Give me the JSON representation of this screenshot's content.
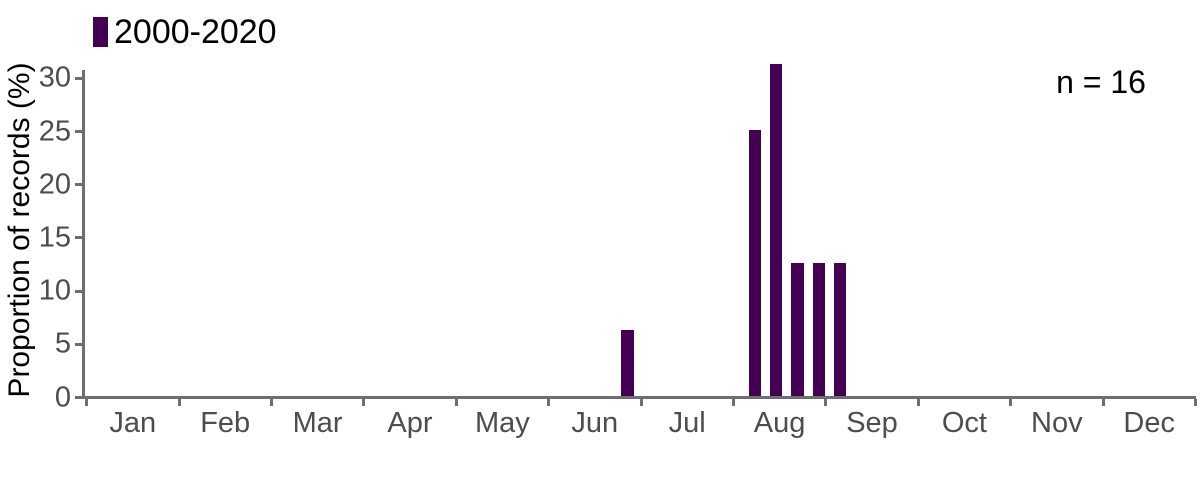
{
  "chart_data": {
    "type": "bar",
    "title": "",
    "xlabel": "",
    "ylabel": "Proportion of records (%)",
    "legend": {
      "label": "2000-2020",
      "position": "top-left",
      "key_color": "#440154"
    },
    "annotation": {
      "text": "n = 16",
      "position": "top-right"
    },
    "n_records": 16,
    "x_axis": {
      "type": "day-of-year",
      "days_per_year": 365,
      "tick_labels": [
        "Jan",
        "Feb",
        "Mar",
        "Apr",
        "May",
        "Jun",
        "Jul",
        "Aug",
        "Sep",
        "Oct",
        "Nov",
        "Dec"
      ]
    },
    "y_axis": {
      "ticks": [
        0,
        5,
        10,
        15,
        20,
        25,
        30
      ],
      "range": [
        0,
        32
      ]
    },
    "series": [
      {
        "name": "2000-2020",
        "color": "#440154",
        "points": [
          {
            "day_of_year": 178,
            "value": 6.25
          },
          {
            "day_of_year": 220,
            "value": 25
          },
          {
            "day_of_year": 227,
            "value": 31.25
          },
          {
            "day_of_year": 234,
            "value": 12.5
          },
          {
            "day_of_year": 241,
            "value": 12.5
          },
          {
            "day_of_year": 248,
            "value": 12.5
          }
        ]
      }
    ],
    "grid": "off",
    "background": "#ffffff",
    "colors": {
      "bar": "#440154",
      "axis_line": "#6e6e6e",
      "tick_text": "#4d4d4d",
      "title_text": "#000000"
    }
  }
}
